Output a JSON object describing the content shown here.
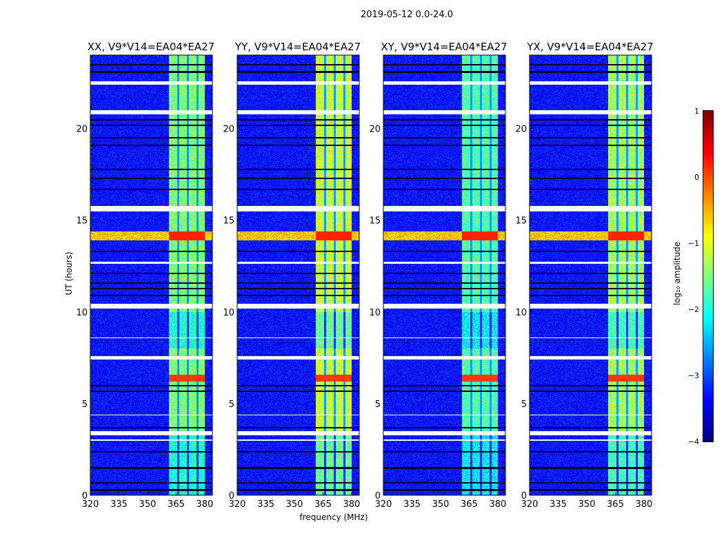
{
  "chart_data": {
    "type": "heatmap",
    "title": "2019-05-12 0.0-24.0",
    "xlabel": "frequency (MHz)",
    "ylabel": "UT (hours)",
    "xlim": [
      320,
      384
    ],
    "ylim": [
      0,
      24
    ],
    "xticks": [
      "320",
      "335",
      "350",
      "365",
      "380"
    ],
    "xtick_values": [
      320,
      335,
      350,
      365,
      380
    ],
    "yticks": [
      "0",
      "5",
      "10",
      "15",
      "20"
    ],
    "ytick_values": [
      0,
      5,
      10,
      15,
      20
    ],
    "panels": [
      {
        "title": "XX, V9*V14=EA04*EA27",
        "band_level": -1.5
      },
      {
        "title": "YY, V9*V14=EA04*EA27",
        "band_level": -1.1
      },
      {
        "title": "XY, V9*V14=EA04*EA27",
        "band_level": -1.7
      },
      {
        "title": "YX, V9*V14=EA04*EA27",
        "band_level": -1.3
      }
    ],
    "colorbar": {
      "label": "log₁₀ amplitude",
      "range": [
        -4,
        1
      ],
      "ticks": [
        "1",
        "0",
        "−1",
        "−2",
        "−3",
        "−4"
      ],
      "tick_values": [
        1,
        0,
        -1,
        -2,
        -3,
        -4
      ],
      "colormap": "jet"
    },
    "signal_band_mhz": [
      361,
      381
    ],
    "flagged_hours": [
      [
        22.4,
        22.6
      ],
      [
        20.8,
        21.0
      ],
      [
        15.5,
        15.8
      ],
      [
        12.65,
        12.75
      ],
      [
        10.2,
        10.45
      ],
      [
        8.58,
        8.62
      ],
      [
        7.4,
        7.6
      ],
      [
        4.38,
        4.42
      ],
      [
        3.3,
        3.5
      ],
      [
        3.0,
        3.05
      ]
    ],
    "strong_rfi_hours": [
      [
        13.9,
        14.4
      ],
      [
        6.2,
        6.6
      ]
    ]
  }
}
